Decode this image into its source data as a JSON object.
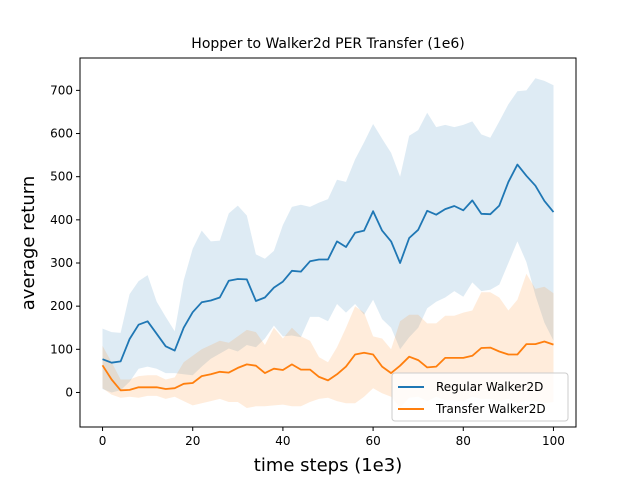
{
  "chart_data": {
    "type": "line",
    "title": "Hopper to Walker2d PER Transfer (1e6)",
    "xlabel": "time steps (1e3)",
    "ylabel": "average return",
    "xlim": [
      -5,
      105
    ],
    "ylim": [
      -80,
      775
    ],
    "xticks": [
      0,
      20,
      40,
      60,
      80,
      100
    ],
    "yticks": [
      0,
      100,
      200,
      300,
      400,
      500,
      600,
      700
    ],
    "grid": false,
    "legend_position": "lower-right",
    "x": [
      0,
      2,
      4,
      6,
      8,
      10,
      12,
      14,
      16,
      18,
      20,
      22,
      24,
      26,
      28,
      30,
      32,
      34,
      36,
      38,
      40,
      42,
      44,
      46,
      48,
      50,
      52,
      54,
      56,
      58,
      60,
      62,
      64,
      66,
      68,
      70,
      72,
      74,
      76,
      78,
      80,
      82,
      84,
      86,
      88,
      90,
      92,
      94,
      96,
      98,
      100
    ],
    "series": [
      {
        "name": "Regular Walker2D",
        "color": "#1f77b4",
        "band_color": "#1f77b4",
        "values": [
          77,
          69,
          72,
          124,
          157,
          165,
          136,
          107,
          97,
          150,
          186,
          209,
          213,
          220,
          259,
          263,
          262,
          212,
          220,
          243,
          257,
          282,
          280,
          304,
          308,
          308,
          350,
          337,
          370,
          375,
          420,
          375,
          350,
          300,
          358,
          377,
          421,
          412,
          425,
          432,
          422,
          445,
          414,
          413,
          433,
          488,
          528,
          502,
          479,
          444,
          418
        ],
        "upper": [
          148,
          140,
          138,
          228,
          258,
          272,
          210,
          175,
          142,
          260,
          333,
          375,
          350,
          352,
          415,
          433,
          410,
          320,
          310,
          328,
          388,
          430,
          435,
          430,
          440,
          448,
          493,
          488,
          540,
          580,
          622,
          588,
          555,
          500,
          595,
          608,
          648,
          615,
          620,
          615,
          620,
          628,
          598,
          590,
          628,
          668,
          698,
          700,
          728,
          722,
          712
        ],
        "lower": [
          8,
          0,
          5,
          25,
          55,
          60,
          55,
          45,
          45,
          42,
          40,
          60,
          78,
          90,
          102,
          95,
          110,
          105,
          125,
          155,
          130,
          132,
          128,
          175,
          175,
          165,
          205,
          185,
          205,
          180,
          215,
          170,
          150,
          100,
          128,
          150,
          195,
          210,
          220,
          235,
          222,
          255,
          235,
          238,
          250,
          300,
          350,
          302,
          225,
          162,
          120
        ]
      },
      {
        "name": "Transfer Walker2D",
        "color": "#ff7f0e",
        "band_color": "#ff7f0e",
        "values": [
          63,
          30,
          5,
          6,
          12,
          12,
          12,
          8,
          10,
          20,
          22,
          38,
          42,
          48,
          46,
          57,
          65,
          62,
          45,
          55,
          52,
          65,
          53,
          53,
          36,
          28,
          42,
          60,
          88,
          92,
          88,
          60,
          45,
          62,
          83,
          75,
          58,
          60,
          80,
          80,
          80,
          85,
          103,
          104,
          95,
          88,
          88,
          112,
          112,
          118,
          111
        ],
        "upper": [
          108,
          70,
          30,
          30,
          38,
          40,
          40,
          30,
          35,
          70,
          85,
          100,
          110,
          120,
          115,
          130,
          145,
          140,
          110,
          150,
          125,
          150,
          130,
          120,
          82,
          70,
          105,
          150,
          200,
          185,
          130,
          125,
          100,
          165,
          180,
          180,
          160,
          160,
          178,
          178,
          185,
          190,
          232,
          232,
          220,
          190,
          215,
          275,
          240,
          245,
          230
        ],
        "lower": [
          10,
          -5,
          -12,
          -10,
          -12,
          -8,
          -8,
          -15,
          -10,
          -20,
          -30,
          -25,
          -20,
          -15,
          -22,
          -22,
          -36,
          -32,
          -32,
          -30,
          -28,
          -32,
          -32,
          -22,
          -15,
          -12,
          -20,
          -25,
          -25,
          -10,
          10,
          -2,
          -10,
          -35,
          -12,
          -10,
          -20,
          -10,
          -18,
          -18,
          -20,
          -10,
          -15,
          -15,
          -20,
          -15,
          -25,
          -18,
          -20,
          -25,
          -22
        ]
      }
    ]
  }
}
